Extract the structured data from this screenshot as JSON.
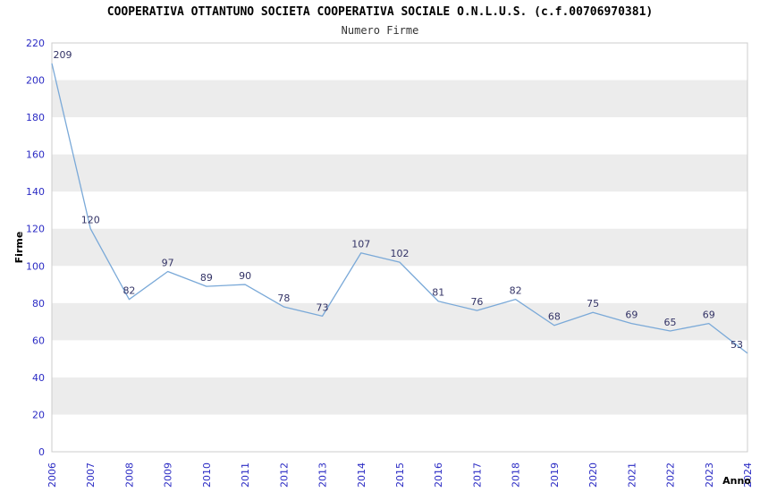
{
  "header": {
    "title": "COOPERATIVA OTTANTUNO SOCIETA COOPERATIVA SOCIALE O.N.L.U.S. (c.f.00706970381)",
    "subtitle": "Numero Firme"
  },
  "chart_data": {
    "type": "line",
    "title": "COOPERATIVA OTTANTUNO SOCIETA COOPERATIVA SOCIALE O.N.L.U.S. (c.f.00706970381)",
    "subtitle": "Numero Firme",
    "xlabel": "Anno",
    "ylabel": "Firme",
    "x": [
      2006,
      2007,
      2008,
      2009,
      2010,
      2011,
      2012,
      2013,
      2014,
      2015,
      2016,
      2017,
      2018,
      2019,
      2020,
      2021,
      2022,
      2023,
      2024
    ],
    "values": [
      209,
      120,
      82,
      97,
      89,
      90,
      78,
      73,
      107,
      102,
      81,
      76,
      82,
      68,
      75,
      69,
      65,
      69,
      53
    ],
    "ylim": [
      0,
      220
    ],
    "ytick_step": 20,
    "legend": "none",
    "grid": "alternating-horizontal-bands",
    "colors": {
      "line": "#7aa9d8",
      "tick_label": "#2b2bc4",
      "data_label": "#333366",
      "axis_label": "#000000",
      "band": "#ececec",
      "plot_border": "#cccccc",
      "background": "#ffffff"
    }
  }
}
